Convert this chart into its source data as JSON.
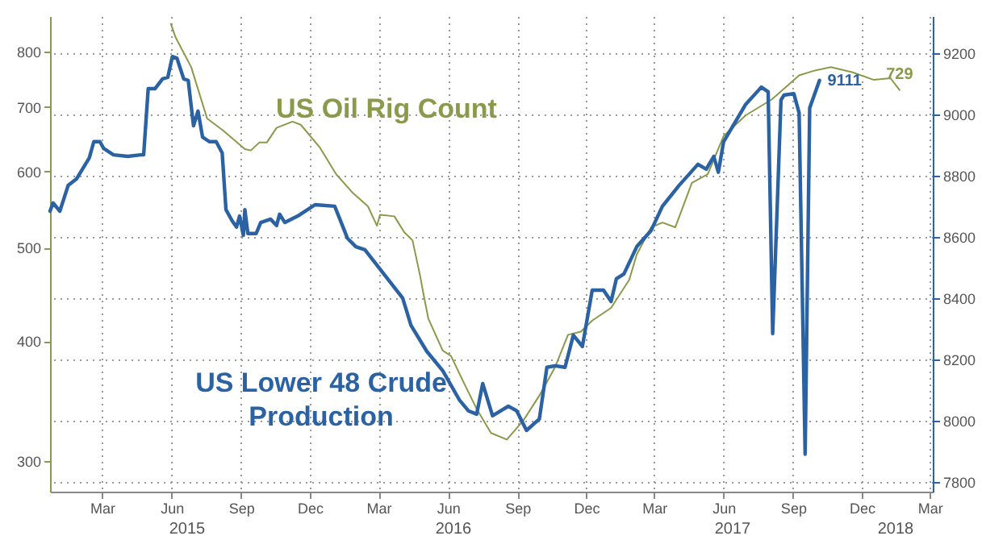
{
  "chart_data": {
    "type": "line",
    "xlim": [
      "2014-12-22",
      "2018-03-05"
    ],
    "xticks": [
      {
        "value": "2015-03-01",
        "label": "Mar"
      },
      {
        "value": "2015-06-01",
        "label": "Jun"
      },
      {
        "value": "2015-09-01",
        "label": "Sep"
      },
      {
        "value": "2015-12-01",
        "label": "Dec"
      },
      {
        "value": "2016-03-01",
        "label": "Mar"
      },
      {
        "value": "2016-06-01",
        "label": "Jun"
      },
      {
        "value": "2016-09-01",
        "label": "Sep"
      },
      {
        "value": "2016-12-01",
        "label": "Dec"
      },
      {
        "value": "2017-03-01",
        "label": "Mar"
      },
      {
        "value": "2017-06-01",
        "label": "Jun"
      },
      {
        "value": "2017-09-01",
        "label": "Sep"
      },
      {
        "value": "2017-12-01",
        "label": "Dec"
      },
      {
        "value": "2018-03-01",
        "label": "Mar"
      }
    ],
    "annotations": [
      "2015",
      "2016",
      "2017",
      "2018"
    ],
    "ylim": [
      279,
      870
    ],
    "yticks": [
      300,
      400,
      500,
      600,
      700,
      800
    ],
    "log": "y",
    "y2lim": [
      7768,
      9321
    ],
    "y2ticks": [
      7800,
      8000,
      8200,
      8400,
      8600,
      8800,
      9000,
      9200
    ],
    "grid": true,
    "marker": "none",
    "series": [
      {
        "name": "US Oil Rig Count",
        "color": "#8a9a4a",
        "axis": "y",
        "x": [
          "2015-05-31",
          "2015-06-06",
          "2015-06-27",
          "2015-07-18",
          "2015-08-09",
          "2015-09-06",
          "2015-09-14",
          "2015-09-25",
          "2015-10-05",
          "2015-10-18",
          "2015-11-08",
          "2015-11-19",
          "2015-12-14",
          "2016-01-05",
          "2016-01-26",
          "2016-02-16",
          "2016-02-28",
          "2016-03-03",
          "2016-03-22",
          "2016-04-04",
          "2016-04-15",
          "2016-04-25",
          "2016-04-29",
          "2016-05-06",
          "2016-05-25",
          "2016-06-05",
          "2016-06-22",
          "2016-07-09",
          "2016-07-28",
          "2016-08-18",
          "2016-09-09",
          "2016-09-30",
          "2016-10-21",
          "2016-11-07",
          "2016-11-24",
          "2016-12-09",
          "2017-01-03",
          "2017-01-27",
          "2017-02-06",
          "2017-02-25",
          "2017-03-12",
          "2017-03-29",
          "2017-04-20",
          "2017-05-11",
          "2017-06-01",
          "2017-06-30",
          "2017-08-04",
          "2017-09-09",
          "2017-09-30",
          "2017-10-21",
          "2017-11-18",
          "2017-12-17",
          "2018-01-08",
          "2018-01-20"
        ],
        "values": [
          854,
          828,
          770,
          681,
          661,
          633,
          631,
          643,
          643,
          666,
          676,
          671,
          636,
          596,
          571,
          552,
          527,
          541,
          539,
          519,
          509,
          468,
          450,
          422,
          391,
          386,
          362,
          340,
          321,
          316,
          331,
          351,
          376,
          406,
          409,
          420,
          433,
          463,
          492,
          525,
          531,
          525,
          584,
          596,
          653,
          686,
          713,
          755,
          764,
          770,
          761,
          747,
          750,
          729
        ],
        "value_labels": [
          null,
          null,
          null,
          null,
          null,
          null,
          null,
          null,
          null,
          null,
          null,
          null,
          null,
          null,
          null,
          null,
          null,
          null,
          null,
          null,
          null,
          null,
          null,
          null,
          null,
          null,
          null,
          null,
          null,
          null,
          null,
          null,
          null,
          null,
          null,
          null,
          null,
          null,
          null,
          null,
          null,
          null,
          null,
          null,
          null,
          null,
          null,
          null,
          null,
          null,
          null,
          null,
          null,
          "729"
        ]
      },
      {
        "name": "US Lower 48 Crude Production",
        "color": "#2a62a3",
        "axis": "y2",
        "x": [
          "2014-12-22",
          "2014-12-26",
          "2015-01-04",
          "2015-01-15",
          "2015-01-26",
          "2015-02-12",
          "2015-02-18",
          "2015-02-26",
          "2015-03-03",
          "2015-03-16",
          "2015-04-04",
          "2015-04-21",
          "2015-04-25",
          "2015-05-01",
          "2015-05-10",
          "2015-05-20",
          "2015-05-27",
          "2015-06-02",
          "2015-06-08",
          "2015-06-17",
          "2015-06-23",
          "2015-06-30",
          "2015-07-06",
          "2015-07-12",
          "2015-07-21",
          "2015-07-30",
          "2015-08-07",
          "2015-08-12",
          "2015-08-20",
          "2015-08-26",
          "2015-08-30",
          "2015-09-04",
          "2015-09-06",
          "2015-09-10",
          "2015-09-21",
          "2015-09-27",
          "2015-10-10",
          "2015-10-18",
          "2015-10-22",
          "2015-10-29",
          "2015-11-15",
          "2015-11-28",
          "2015-12-08",
          "2016-01-03",
          "2016-01-20",
          "2016-01-31",
          "2016-02-12",
          "2016-03-08",
          "2016-04-02",
          "2016-04-13",
          "2016-05-04",
          "2016-05-25",
          "2016-06-16",
          "2016-06-28",
          "2016-07-09",
          "2016-07-17",
          "2016-07-30",
          "2016-08-20",
          "2016-08-31",
          "2016-09-13",
          "2016-09-30",
          "2016-10-10",
          "2016-10-21",
          "2016-11-03",
          "2016-11-14",
          "2016-11-26",
          "2016-12-09",
          "2016-12-24",
          "2017-01-03",
          "2017-01-10",
          "2017-01-20",
          "2017-02-06",
          "2017-02-25",
          "2017-03-12",
          "2017-04-03",
          "2017-04-28",
          "2017-05-09",
          "2017-05-19",
          "2017-05-25",
          "2017-06-01",
          "2017-06-30",
          "2017-07-21",
          "2017-07-30",
          "2017-08-05",
          "2017-08-16",
          "2017-08-20",
          "2017-09-02",
          "2017-09-09",
          "2017-09-17",
          "2017-09-23",
          "2017-10-06"
        ],
        "values": [
          8684,
          8711,
          8684,
          8768,
          8789,
          8858,
          8911,
          8911,
          8889,
          8868,
          8863,
          8868,
          8868,
          9084,
          9084,
          9116,
          9121,
          9189,
          9184,
          9116,
          9111,
          8963,
          9011,
          8926,
          8911,
          8911,
          8874,
          8689,
          8653,
          8632,
          8668,
          8605,
          8689,
          8611,
          8611,
          8647,
          8658,
          8637,
          8674,
          8647,
          8668,
          8689,
          8705,
          8700,
          8595,
          8568,
          8558,
          8479,
          8400,
          8311,
          8226,
          8163,
          8068,
          8032,
          8021,
          8121,
          8016,
          8047,
          8032,
          7968,
          8005,
          8174,
          8179,
          8174,
          8279,
          8242,
          8426,
          8426,
          8389,
          8463,
          8479,
          8568,
          8621,
          8700,
          8768,
          8837,
          8821,
          8863,
          8811,
          8911,
          9032,
          9089,
          9074,
          8284,
          9047,
          9063,
          9068,
          9005,
          7890,
          9021,
          9111
        ],
        "value_labels": [
          null,
          null,
          null,
          null,
          null,
          null,
          null,
          null,
          null,
          null,
          null,
          null,
          null,
          null,
          null,
          null,
          null,
          null,
          null,
          null,
          null,
          null,
          null,
          null,
          null,
          null,
          null,
          null,
          null,
          null,
          null,
          null,
          null,
          null,
          null,
          null,
          null,
          null,
          null,
          null,
          null,
          null,
          null,
          null,
          null,
          null,
          null,
          null,
          null,
          null,
          null,
          null,
          null,
          null,
          null,
          null,
          null,
          null,
          null,
          null,
          null,
          null,
          null,
          null,
          null,
          null,
          null,
          null,
          null,
          null,
          null,
          null,
          null,
          null,
          null,
          null,
          null,
          null,
          null,
          null,
          null,
          null,
          null,
          null,
          null,
          null,
          null,
          null,
          null,
          null,
          "9111"
        ]
      }
    ]
  }
}
